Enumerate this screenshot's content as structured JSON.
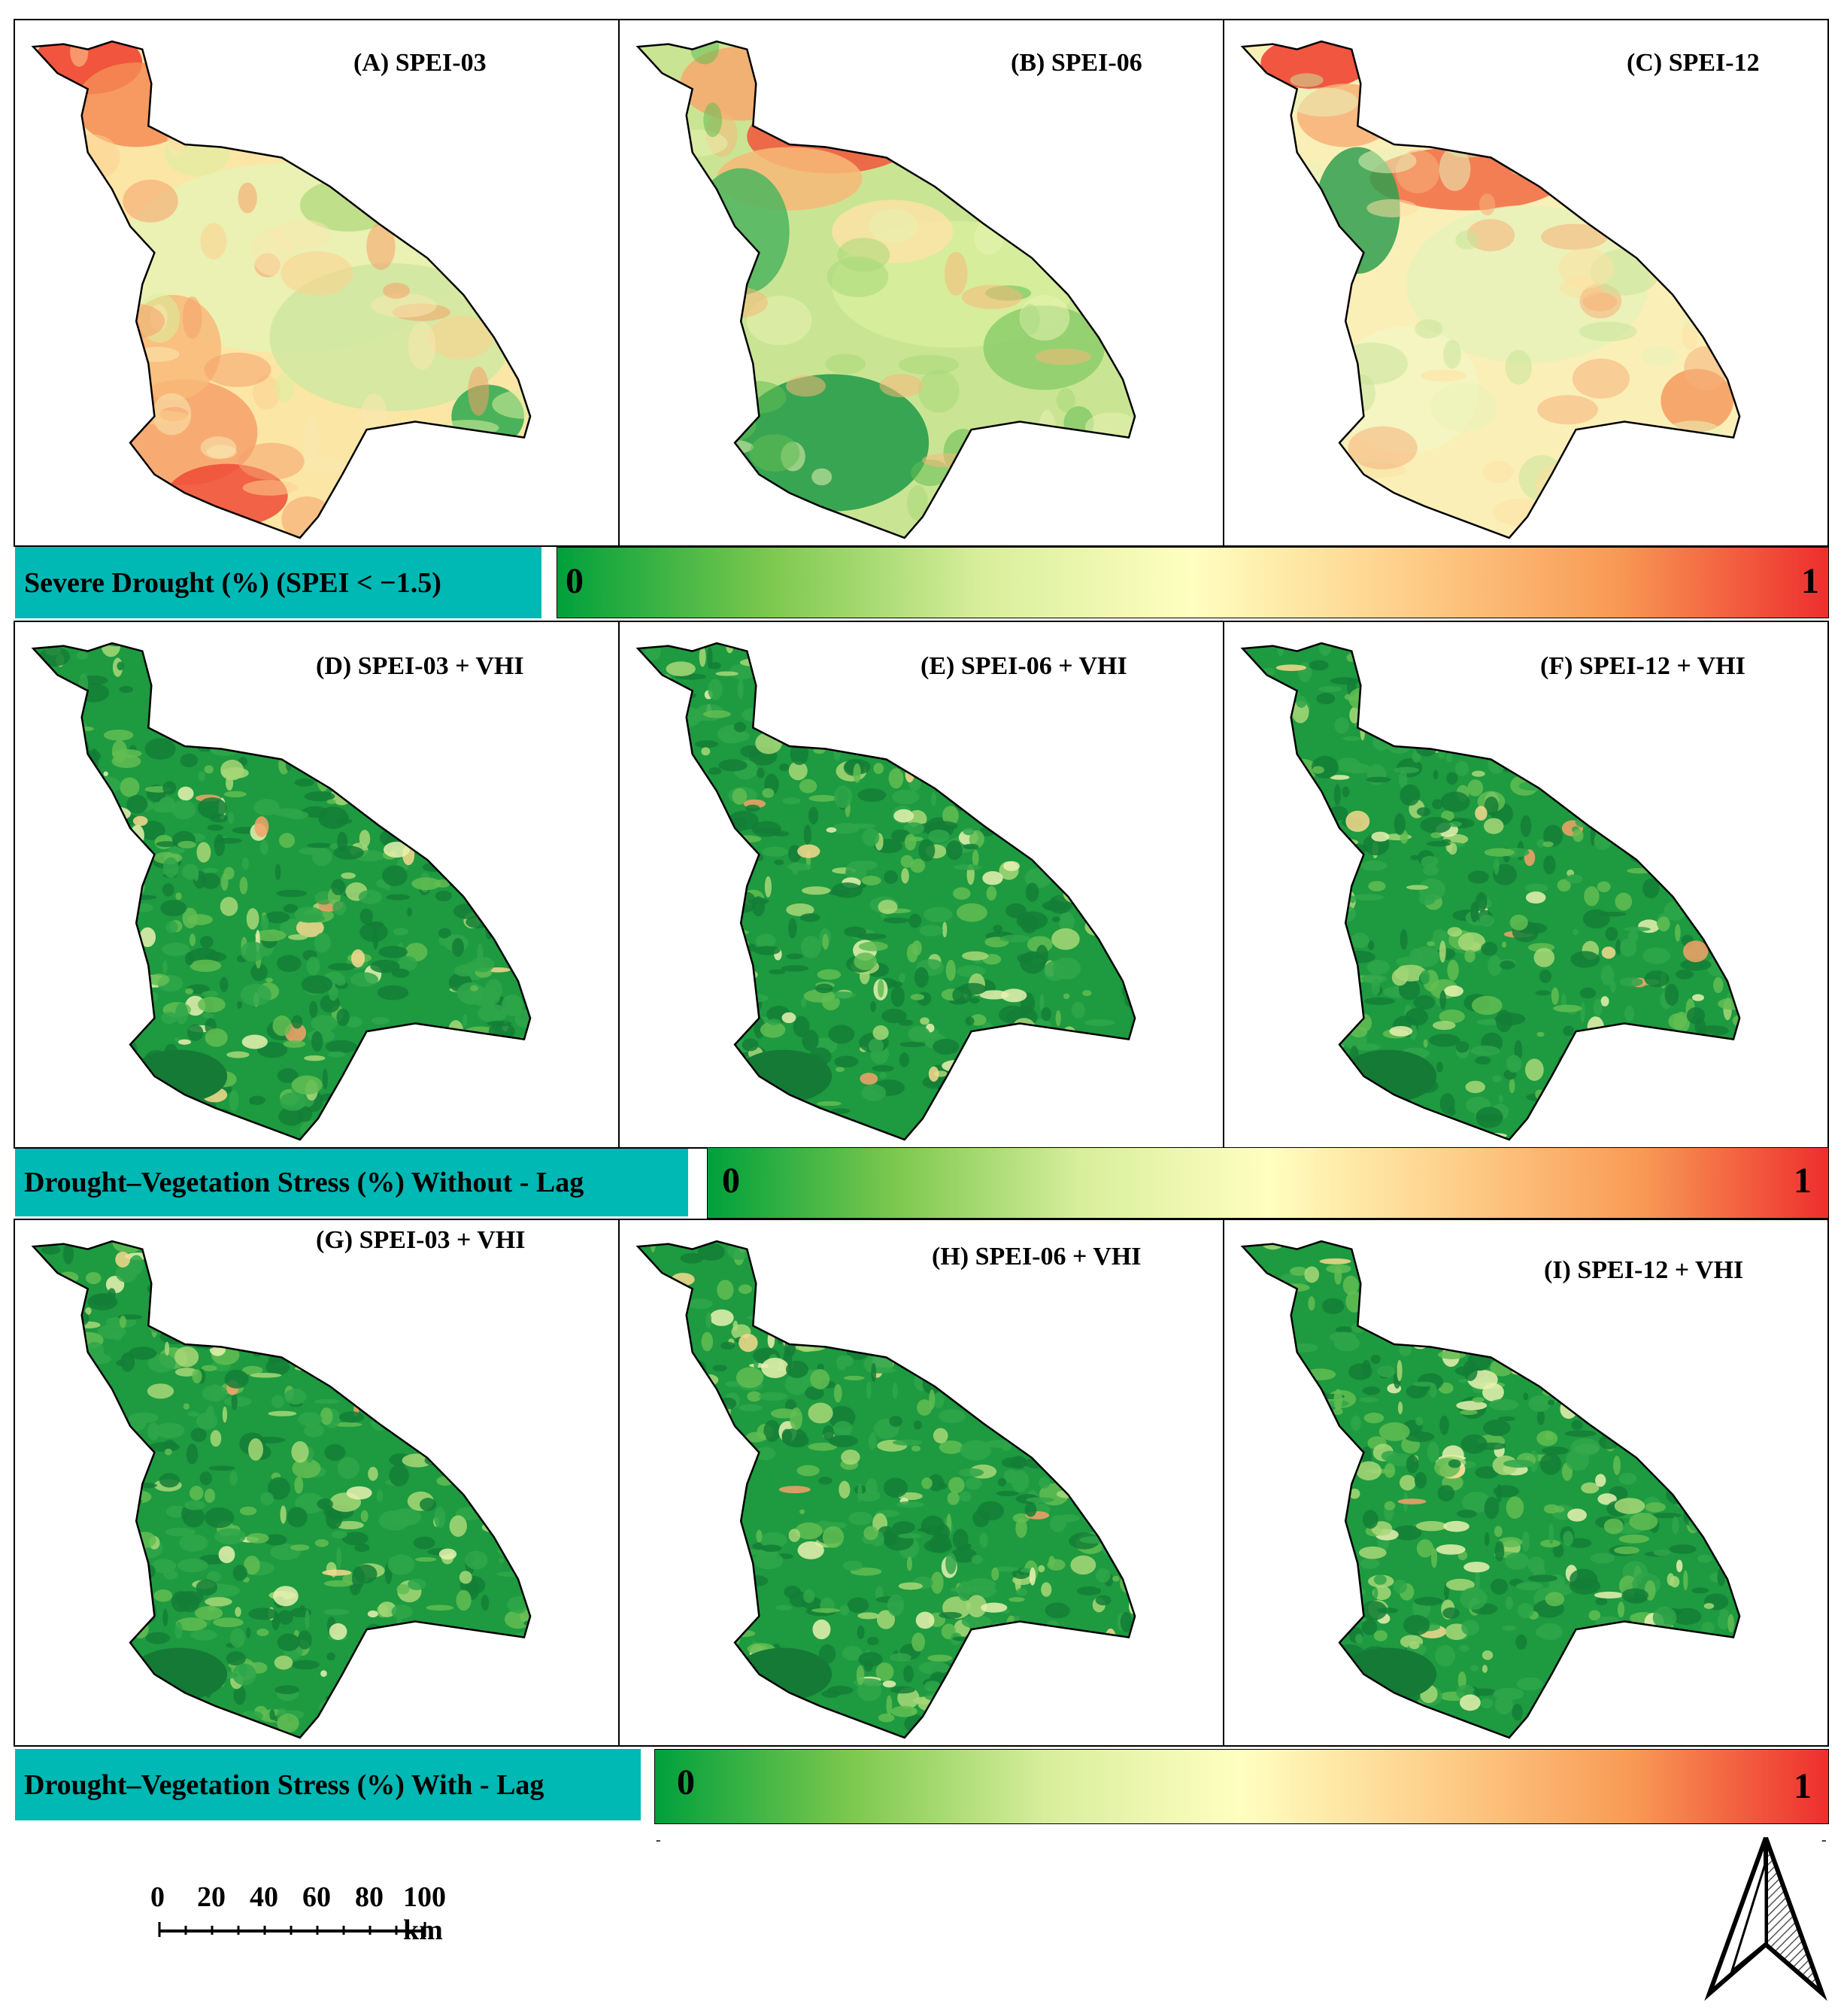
{
  "panels": [
    {
      "title": "(A) SPEI-03",
      "scheme": "spei03"
    },
    {
      "title": "(B) SPEI-06",
      "scheme": "spei06"
    },
    {
      "title": "(C) SPEI-12",
      "scheme": "spei12"
    },
    {
      "title": "(D) SPEI-03 + VHI",
      "scheme": "vhi"
    },
    {
      "title": "(E) SPEI-06 + VHI",
      "scheme": "vhi"
    },
    {
      "title": "(F) SPEI-12 + VHI",
      "scheme": "vhi"
    },
    {
      "title": "(G) SPEI-03 + VHI",
      "scheme": "vhi"
    },
    {
      "title": "(H) SPEI-06 + VHI",
      "scheme": "vhi"
    },
    {
      "title": "(I) SPEI-12 + VHI",
      "scheme": "vhi"
    }
  ],
  "legends": [
    {
      "label": "Severe Drought (%) (SPEI < −1.5)",
      "min": "0",
      "max": "1"
    },
    {
      "label": "Drought–Vegetation Stress (%) Without - Lag",
      "min": "0",
      "max": "1"
    },
    {
      "label": "Drought–Vegetation Stress (%) With - Lag",
      "min": "0",
      "max": "1"
    }
  ],
  "ramp_colors": [
    "#00a03c",
    "#7cc84e",
    "#d8ee9c",
    "#ffffc0",
    "#fdcf8a",
    "#f89a55",
    "#ee2e2e"
  ],
  "scale_bar": {
    "ticks": [
      "0",
      "20",
      "40",
      "60",
      "80",
      "100 km"
    ]
  },
  "north_arrow": "north-arrow-icon"
}
